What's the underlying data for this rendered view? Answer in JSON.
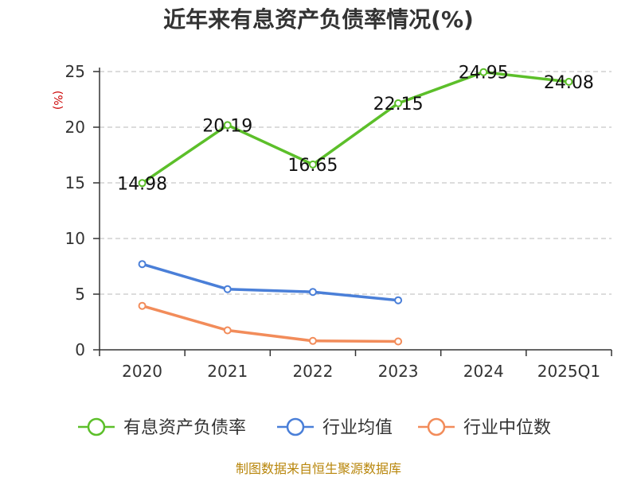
{
  "chart_data": {
    "type": "line",
    "title": "近年来有息资产负债率情况(%)",
    "ylabel": "(%)",
    "xlabel": "",
    "categories": [
      "2020",
      "2021",
      "2022",
      "2023",
      "2024",
      "2025Q1"
    ],
    "ylim": [
      0,
      25
    ],
    "yticks": [
      0,
      5,
      10,
      15,
      20,
      25
    ],
    "grid": true,
    "legend_position": "bottom",
    "series": [
      {
        "name": "有息资产负债率",
        "color": "#5cbf2a",
        "values": [
          14.98,
          20.19,
          16.65,
          22.15,
          24.95,
          24.08
        ],
        "labels": [
          "14.98",
          "20.19",
          "16.65",
          "22.15",
          "24.95",
          "24.08"
        ]
      },
      {
        "name": "行业均值",
        "color": "#4a7fd8",
        "values": [
          7.7,
          5.45,
          5.2,
          4.45,
          null,
          null
        ]
      },
      {
        "name": "行业中位数",
        "color": "#f28c5a",
        "values": [
          3.95,
          1.75,
          0.8,
          0.75,
          null,
          null
        ]
      }
    ]
  },
  "source": "制图数据来自恒生聚源数据库"
}
